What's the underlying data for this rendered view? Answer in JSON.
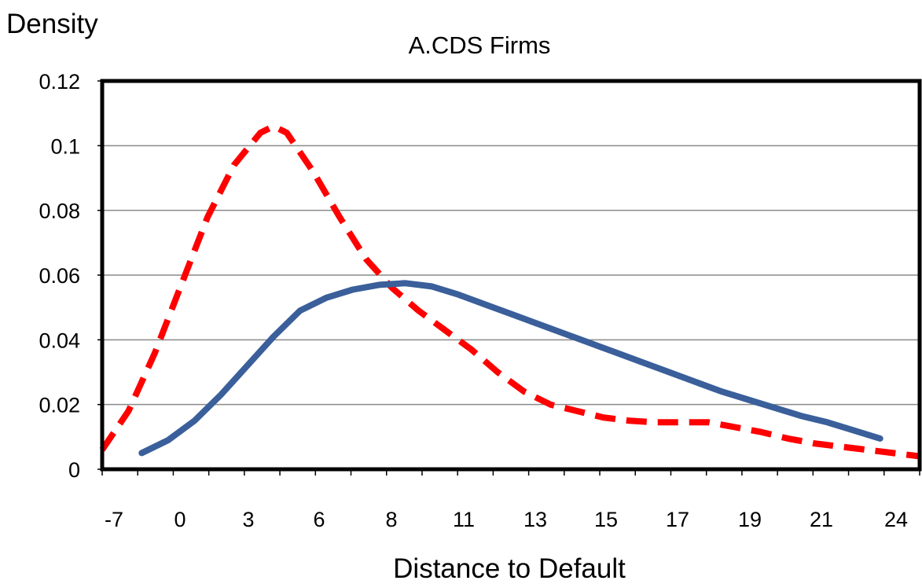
{
  "chart_data": {
    "type": "line",
    "title": "A.CDS Firms",
    "xlabel": "Distance to Default",
    "ylabel": "Density",
    "x_tick_labels": [
      "-7",
      "0",
      "3",
      "6",
      "8",
      "11",
      "13",
      "15",
      "17",
      "19",
      "21",
      "24"
    ],
    "y_tick_labels": [
      "0",
      "0.02",
      "0.04",
      "0.06",
      "0.08",
      "0.1",
      "0.12"
    ],
    "ylim": [
      0,
      0.12
    ],
    "grid": "horizontal",
    "legend": "none",
    "series": [
      {
        "style": "dashed",
        "color": "#ff0000",
        "points": [
          [
            -7,
            0.006
          ],
          [
            -6,
            0.018
          ],
          [
            -5,
            0.036
          ],
          [
            -4,
            0.057
          ],
          [
            -3,
            0.078
          ],
          [
            -2,
            0.094
          ],
          [
            -1,
            0.104
          ],
          [
            -0.5,
            0.106
          ],
          [
            0,
            0.104
          ],
          [
            1,
            0.092
          ],
          [
            2,
            0.078
          ],
          [
            3,
            0.065
          ],
          [
            4,
            0.056
          ],
          [
            5,
            0.049
          ],
          [
            6,
            0.043
          ],
          [
            7,
            0.037
          ],
          [
            8,
            0.03
          ],
          [
            9,
            0.024
          ],
          [
            10,
            0.02
          ],
          [
            11,
            0.018
          ],
          [
            12,
            0.016
          ],
          [
            13,
            0.015
          ],
          [
            14,
            0.0145
          ],
          [
            15,
            0.0145
          ],
          [
            16,
            0.0145
          ],
          [
            17,
            0.013
          ],
          [
            18,
            0.0115
          ],
          [
            19,
            0.0095
          ],
          [
            20,
            0.008
          ],
          [
            21,
            0.007
          ],
          [
            22,
            0.006
          ],
          [
            23,
            0.005
          ],
          [
            24,
            0.004
          ]
        ]
      },
      {
        "style": "solid",
        "color": "#3a5f9a",
        "points": [
          [
            -5.5,
            0.005
          ],
          [
            -4.5,
            0.009
          ],
          [
            -3.5,
            0.015
          ],
          [
            -2.5,
            0.023
          ],
          [
            -1.5,
            0.032
          ],
          [
            -0.5,
            0.041
          ],
          [
            0.5,
            0.049
          ],
          [
            1.5,
            0.053
          ],
          [
            2.5,
            0.0555
          ],
          [
            3.5,
            0.057
          ],
          [
            4.5,
            0.0575
          ],
          [
            5.5,
            0.0565
          ],
          [
            6.5,
            0.054
          ],
          [
            7.5,
            0.051
          ],
          [
            8.5,
            0.048
          ],
          [
            9.5,
            0.045
          ],
          [
            10.5,
            0.042
          ],
          [
            11.5,
            0.039
          ],
          [
            12.5,
            0.036
          ],
          [
            13.5,
            0.033
          ],
          [
            14.5,
            0.03
          ],
          [
            15.5,
            0.027
          ],
          [
            16.5,
            0.024
          ],
          [
            17.5,
            0.0215
          ],
          [
            18.5,
            0.019
          ],
          [
            19.5,
            0.0165
          ],
          [
            20.5,
            0.0145
          ],
          [
            21.5,
            0.012
          ],
          [
            22.5,
            0.0095
          ]
        ]
      }
    ]
  }
}
